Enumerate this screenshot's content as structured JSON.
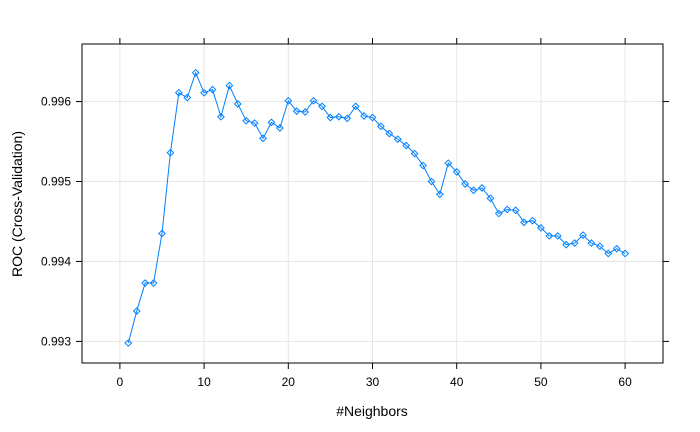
{
  "chart_data": {
    "type": "line",
    "title": "",
    "xlabel": "#Neighbors",
    "ylabel": "ROC (Cross-Validation)",
    "xlim": [
      -4.5,
      64.5
    ],
    "ylim": [
      0.99273,
      0.99672
    ],
    "x_ticks": [
      0,
      10,
      20,
      30,
      40,
      50,
      60
    ],
    "y_ticks": [
      0.993,
      0.994,
      0.995,
      0.996
    ],
    "x_tick_labels": [
      "0",
      "10",
      "20",
      "30",
      "40",
      "50",
      "60"
    ],
    "y_tick_labels": [
      "0.993",
      "0.994",
      "0.995",
      "0.996"
    ],
    "grid": true,
    "legend": "none",
    "colors": {
      "series": "#0080ff",
      "grid": "#e6e6e6",
      "frame": "#000000"
    },
    "series": [
      {
        "marker": "diamond",
        "x": [
          1,
          2,
          3,
          4,
          5,
          6,
          7,
          8,
          9,
          10,
          11,
          12,
          13,
          14,
          15,
          16,
          17,
          18,
          19,
          20,
          21,
          22,
          23,
          24,
          25,
          26,
          27,
          28,
          29,
          30,
          31,
          32,
          33,
          34,
          35,
          36,
          37,
          38,
          39,
          40,
          41,
          42,
          43,
          44,
          45,
          46,
          47,
          48,
          49,
          50,
          51,
          52,
          53,
          54,
          55,
          56,
          57,
          58,
          59,
          60
        ],
        "values": [
          0.99298,
          0.99338,
          0.99373,
          0.99373,
          0.99435,
          0.99536,
          0.99611,
          0.99605,
          0.99636,
          0.99611,
          0.99615,
          0.99581,
          0.9962,
          0.99597,
          0.99576,
          0.99573,
          0.99554,
          0.99574,
          0.99567,
          0.99601,
          0.99588,
          0.99587,
          0.99601,
          0.99594,
          0.9958,
          0.99581,
          0.99579,
          0.99594,
          0.99582,
          0.9958,
          0.99569,
          0.9956,
          0.99553,
          0.99545,
          0.99535,
          0.9952,
          0.995,
          0.99484,
          0.99523,
          0.99512,
          0.99497,
          0.99489,
          0.99492,
          0.99479,
          0.9946,
          0.99465,
          0.99464,
          0.99449,
          0.99451,
          0.99442,
          0.99432,
          0.99432,
          0.99421,
          0.99423,
          0.99433,
          0.99423,
          0.99419,
          0.9941,
          0.99416,
          0.9941
        ]
      }
    ]
  }
}
